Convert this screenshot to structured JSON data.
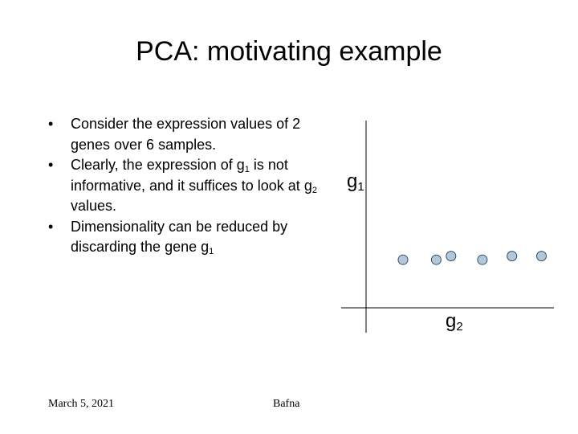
{
  "slide": {
    "title": "PCA: motivating example",
    "bullets": [
      {
        "parts": [
          "Consider the expression values of 2 genes over 6 samples."
        ]
      },
      {
        "parts": [
          "Clearly, the expression of g",
          "1",
          " is not informative, and it suffices to look at g",
          "2",
          " values."
        ]
      },
      {
        "parts": [
          "Dimensionality can be reduced by discarding the gene g",
          "1",
          ""
        ]
      }
    ],
    "footer_date": "March 5, 2021",
    "footer_author": "Bafna"
  },
  "chart_data": {
    "type": "scatter",
    "xlabel_base": "g",
    "xlabel_sub": "2",
    "ylabel_base": "g",
    "ylabel_sub": "1",
    "grid": false,
    "legend": "none",
    "xlim": [
      0,
      10
    ],
    "ylim": [
      0,
      10
    ],
    "points": [
      {
        "x": 2.0,
        "y": 2.6
      },
      {
        "x": 3.8,
        "y": 2.6
      },
      {
        "x": 4.6,
        "y": 2.8
      },
      {
        "x": 6.3,
        "y": 2.6
      },
      {
        "x": 7.9,
        "y": 2.8
      },
      {
        "x": 9.5,
        "y": 2.8
      }
    ],
    "point_fill": "#b4c7d8",
    "point_stroke": "#2f4f6a"
  }
}
